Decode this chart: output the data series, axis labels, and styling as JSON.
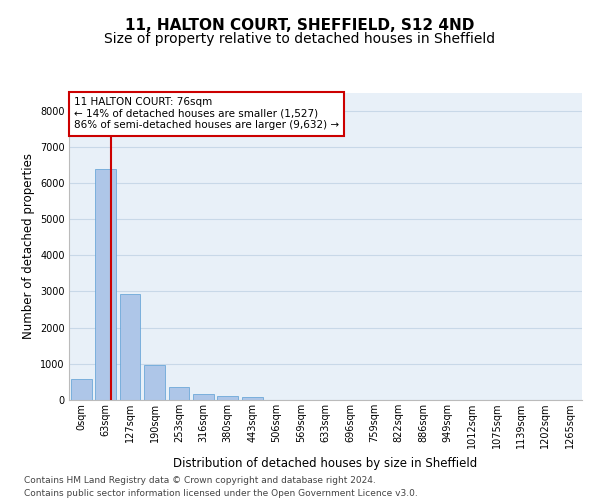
{
  "title": "11, HALTON COURT, SHEFFIELD, S12 4ND",
  "subtitle": "Size of property relative to detached houses in Sheffield",
  "xlabel": "Distribution of detached houses by size in Sheffield",
  "ylabel": "Number of detached properties",
  "categories": [
    "0sqm",
    "63sqm",
    "127sqm",
    "190sqm",
    "253sqm",
    "316sqm",
    "380sqm",
    "443sqm",
    "506sqm",
    "569sqm",
    "633sqm",
    "696sqm",
    "759sqm",
    "822sqm",
    "886sqm",
    "949sqm",
    "1012sqm",
    "1075sqm",
    "1139sqm",
    "1202sqm",
    "1265sqm"
  ],
  "values": [
    580,
    6380,
    2920,
    980,
    360,
    175,
    105,
    90,
    0,
    0,
    0,
    0,
    0,
    0,
    0,
    0,
    0,
    0,
    0,
    0,
    0
  ],
  "bar_color": "#aec6e8",
  "bar_edge_color": "#5a9fd4",
  "grid_color": "#c8d8e8",
  "background_color": "#e8f0f8",
  "property_line_color": "#cc0000",
  "annotation_text": "11 HALTON COURT: 76sqm\n← 14% of detached houses are smaller (1,527)\n86% of semi-detached houses are larger (9,632) →",
  "annotation_box_color": "#cc0000",
  "ylim": [
    0,
    8500
  ],
  "yticks": [
    0,
    1000,
    2000,
    3000,
    4000,
    5000,
    6000,
    7000,
    8000
  ],
  "footer_line1": "Contains HM Land Registry data © Crown copyright and database right 2024.",
  "footer_line2": "Contains public sector information licensed under the Open Government Licence v3.0.",
  "title_fontsize": 11,
  "subtitle_fontsize": 10,
  "label_fontsize": 8.5,
  "tick_fontsize": 7,
  "footer_fontsize": 6.5
}
